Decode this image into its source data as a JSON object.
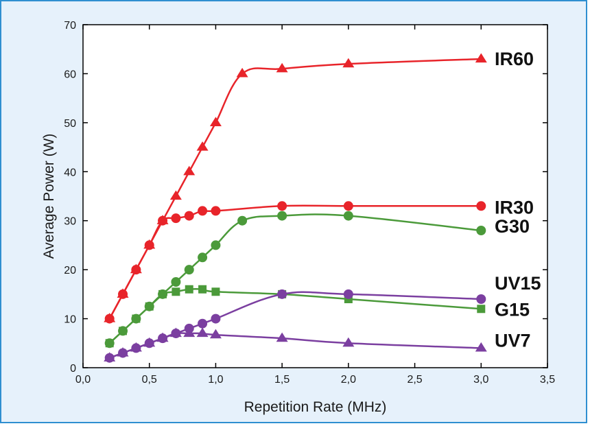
{
  "chart_data": {
    "type": "line",
    "title": "",
    "xlabel": "Repetition Rate (MHz)",
    "ylabel": "Average Power (W)",
    "xlim": [
      0.0,
      3.5
    ],
    "ylim": [
      0,
      70
    ],
    "x_ticks": [
      "0,0",
      "0,5",
      "1,0",
      "1,5",
      "2,0",
      "2,5",
      "3,0",
      "3,5"
    ],
    "y_ticks": [
      "0",
      "10",
      "20",
      "30",
      "40",
      "50",
      "60",
      "70"
    ],
    "grid": false,
    "series": [
      {
        "name": "IR60",
        "color": "#e8242a",
        "marker": "triangle",
        "x": [
          0.2,
          0.3,
          0.4,
          0.5,
          0.6,
          0.7,
          0.8,
          0.9,
          1.0,
          1.2,
          1.5,
          2.0,
          3.0
        ],
        "y": [
          10,
          15,
          20,
          25,
          30,
          35,
          40,
          45,
          50,
          60,
          61,
          62,
          63
        ]
      },
      {
        "name": "IR30",
        "color": "#e8242a",
        "marker": "circle",
        "x": [
          0.2,
          0.3,
          0.4,
          0.5,
          0.6,
          0.7,
          0.8,
          0.9,
          1.0,
          1.5,
          2.0,
          3.0
        ],
        "y": [
          10,
          15,
          20,
          25,
          30,
          30.5,
          31,
          32,
          32,
          33,
          33,
          33
        ]
      },
      {
        "name": "G30",
        "color": "#4b9a3a",
        "marker": "circle",
        "x": [
          0.2,
          0.3,
          0.4,
          0.5,
          0.6,
          0.7,
          0.8,
          0.9,
          1.0,
          1.2,
          1.5,
          2.0,
          3.0
        ],
        "y": [
          5,
          7.5,
          10,
          12.5,
          15,
          17.5,
          20,
          22.5,
          25,
          30,
          31,
          31,
          28
        ]
      },
      {
        "name": "G15",
        "color": "#4b9a3a",
        "marker": "square",
        "x": [
          0.2,
          0.3,
          0.4,
          0.5,
          0.6,
          0.7,
          0.8,
          0.9,
          1.0,
          1.5,
          2.0,
          3.0
        ],
        "y": [
          5,
          7.5,
          10,
          12.5,
          15,
          15.5,
          16,
          16,
          15.5,
          15,
          14,
          12
        ]
      },
      {
        "name": "UV15",
        "color": "#7b3fa0",
        "marker": "circle",
        "x": [
          0.2,
          0.3,
          0.4,
          0.5,
          0.6,
          0.7,
          0.8,
          0.9,
          1.0,
          1.5,
          2.0,
          3.0
        ],
        "y": [
          2,
          3,
          4,
          5,
          6,
          7,
          8,
          9,
          10,
          15,
          15,
          14
        ]
      },
      {
        "name": "UV7",
        "color": "#7b3fa0",
        "marker": "triangle",
        "x": [
          0.2,
          0.3,
          0.4,
          0.5,
          0.6,
          0.7,
          0.8,
          0.9,
          1.0,
          1.5,
          2.0,
          3.0
        ],
        "y": [
          2,
          3,
          4,
          5,
          6,
          7,
          7,
          7,
          6.7,
          6,
          5,
          4
        ]
      }
    ]
  }
}
